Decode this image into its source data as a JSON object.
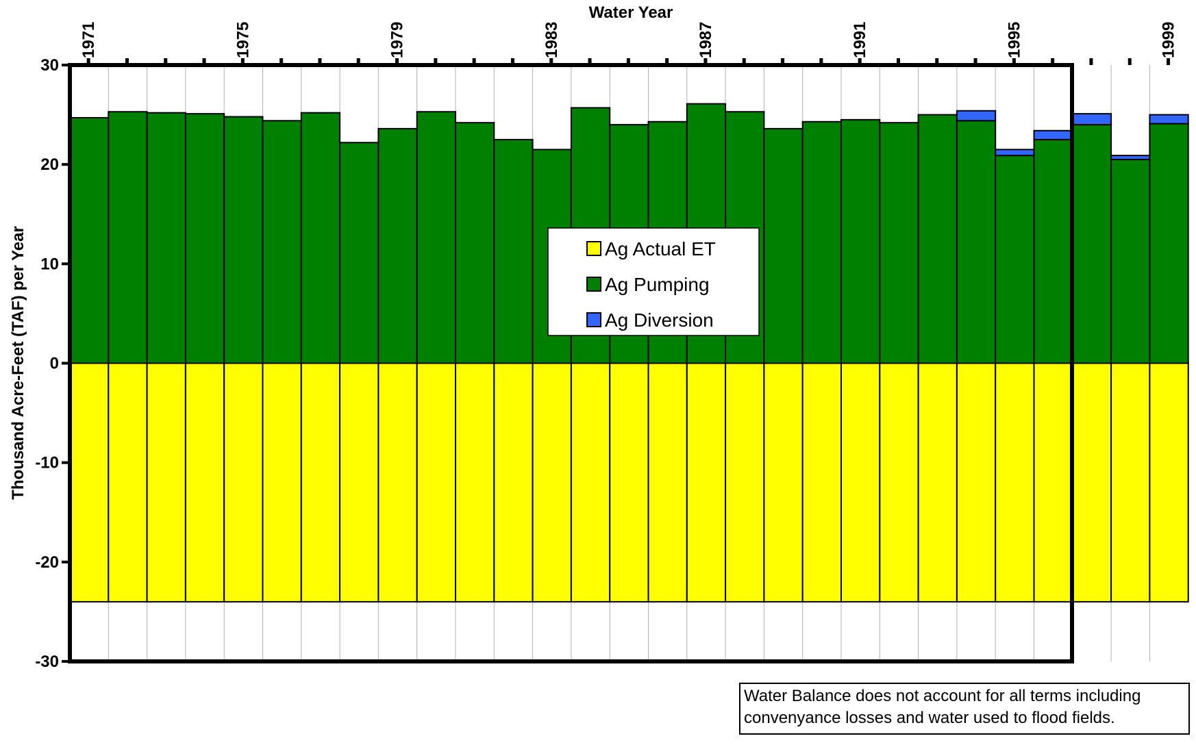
{
  "chart_data": {
    "type": "bar",
    "stacked": true,
    "xlabel": "Water Year",
    "ylabel": "Thousand Acre-Feet (TAF) per Year",
    "ylim": [
      -30,
      30
    ],
    "yticks": [
      -30,
      -20,
      -10,
      0,
      10,
      20,
      30
    ],
    "x_tick_labels": [
      "1971",
      "1975",
      "1979",
      "1983",
      "1987",
      "1991",
      "1995",
      "1999"
    ],
    "grid": "vertical",
    "legend_position": "center",
    "categories": [
      1971,
      1972,
      1973,
      1974,
      1975,
      1976,
      1977,
      1978,
      1979,
      1980,
      1981,
      1982,
      1983,
      1984,
      1985,
      1986,
      1987,
      1988,
      1989,
      1990,
      1991,
      1992,
      1993,
      1994,
      1995,
      1996,
      1997,
      1998,
      1999
    ],
    "series": [
      {
        "name": "Ag Actual ET",
        "color": "#ffff00",
        "values": [
          -24,
          -24,
          -24,
          -24,
          -24,
          -24,
          -24,
          -24,
          -24,
          -24,
          -24,
          -24,
          -24,
          -24,
          -24,
          -24,
          -24,
          -24,
          -24,
          -24,
          -24,
          -24,
          -24,
          -24,
          -24,
          -24,
          -24,
          -24,
          -24
        ]
      },
      {
        "name": "Ag Pumping",
        "color": "#008000",
        "values": [
          24.7,
          25.3,
          25.2,
          25.1,
          24.8,
          24.4,
          25.2,
          22.2,
          23.6,
          25.3,
          24.2,
          22.5,
          21.5,
          25.7,
          24.0,
          24.3,
          26.1,
          25.3,
          23.6,
          24.3,
          24.5,
          24.2,
          25.0,
          24.4,
          20.9,
          22.5,
          24.0,
          20.5,
          24.1
        ]
      },
      {
        "name": "Ag Diversion",
        "color": "#3366ff",
        "values": [
          0,
          0,
          0,
          0,
          0,
          0,
          0,
          0,
          0,
          0,
          0,
          0,
          0,
          0,
          0,
          0,
          0,
          0,
          0,
          0,
          0,
          0,
          0,
          1.0,
          0.6,
          0.9,
          1.1,
          0.4,
          0.9
        ]
      }
    ],
    "note": [
      "Water Balance does not account for all terms including",
      "convenyance losses and water used to flood fields."
    ]
  }
}
